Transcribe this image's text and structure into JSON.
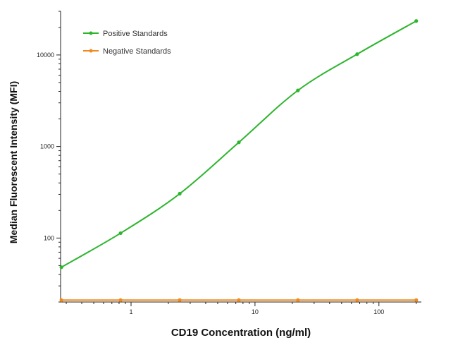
{
  "chart_data": {
    "type": "line",
    "xlabel": "CD19 Concentration (ng/ml)",
    "ylabel": "Median  Fluorescent Intensity  (MFI)",
    "xscale": "log",
    "yscale": "log",
    "xlim": [
      0.27,
      220
    ],
    "ylim": [
      20,
      30000
    ],
    "x_ticks": [
      1,
      10,
      100
    ],
    "y_ticks": [
      100,
      1000,
      10000
    ],
    "x_tick_labels": [
      "1",
      "10",
      "100"
    ],
    "y_tick_labels": [
      "100",
      "1000",
      "10000"
    ],
    "grid": false,
    "legend_position": "top-left",
    "series": [
      {
        "name": "Positive Standards",
        "color": "#2db52d",
        "x": [
          0.274,
          0.823,
          2.47,
          7.41,
          22.2,
          66.7,
          200
        ],
        "y": [
          48,
          113,
          305,
          1110,
          4100,
          10200,
          23500
        ]
      },
      {
        "name": "Negative Standards",
        "color": "#f08a1c",
        "x": [
          0.274,
          0.823,
          2.47,
          7.41,
          22.2,
          66.7,
          200
        ],
        "y": [
          21,
          21,
          21,
          21,
          21,
          21,
          21
        ]
      }
    ]
  }
}
